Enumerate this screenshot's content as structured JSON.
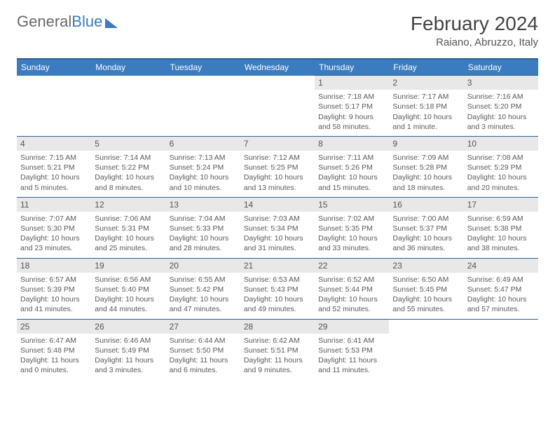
{
  "logo": {
    "text1": "General",
    "text2": "Blue"
  },
  "header": {
    "month": "February 2024",
    "location": "Raiano, Abruzzo, Italy"
  },
  "colors": {
    "header_bg": "#3b7bbf",
    "header_border": "#2d5f94",
    "daynum_bg": "#e8e8e8",
    "text": "#5a5a5a",
    "logo_gray": "#6a6a6a",
    "logo_blue": "#3b7bbf"
  },
  "typography": {
    "month_fontsize": 28,
    "location_fontsize": 15,
    "dayheader_fontsize": 12,
    "cell_fontsize": 10.5
  },
  "calendar": {
    "day_headers": [
      "Sunday",
      "Monday",
      "Tuesday",
      "Wednesday",
      "Thursday",
      "Friday",
      "Saturday"
    ],
    "leading_empty": 4,
    "days": [
      {
        "n": 1,
        "sunrise": "7:18 AM",
        "sunset": "5:17 PM",
        "daylight": "9 hours and 58 minutes."
      },
      {
        "n": 2,
        "sunrise": "7:17 AM",
        "sunset": "5:18 PM",
        "daylight": "10 hours and 1 minute."
      },
      {
        "n": 3,
        "sunrise": "7:16 AM",
        "sunset": "5:20 PM",
        "daylight": "10 hours and 3 minutes."
      },
      {
        "n": 4,
        "sunrise": "7:15 AM",
        "sunset": "5:21 PM",
        "daylight": "10 hours and 5 minutes."
      },
      {
        "n": 5,
        "sunrise": "7:14 AM",
        "sunset": "5:22 PM",
        "daylight": "10 hours and 8 minutes."
      },
      {
        "n": 6,
        "sunrise": "7:13 AM",
        "sunset": "5:24 PM",
        "daylight": "10 hours and 10 minutes."
      },
      {
        "n": 7,
        "sunrise": "7:12 AM",
        "sunset": "5:25 PM",
        "daylight": "10 hours and 13 minutes."
      },
      {
        "n": 8,
        "sunrise": "7:11 AM",
        "sunset": "5:26 PM",
        "daylight": "10 hours and 15 minutes."
      },
      {
        "n": 9,
        "sunrise": "7:09 AM",
        "sunset": "5:28 PM",
        "daylight": "10 hours and 18 minutes."
      },
      {
        "n": 10,
        "sunrise": "7:08 AM",
        "sunset": "5:29 PM",
        "daylight": "10 hours and 20 minutes."
      },
      {
        "n": 11,
        "sunrise": "7:07 AM",
        "sunset": "5:30 PM",
        "daylight": "10 hours and 23 minutes."
      },
      {
        "n": 12,
        "sunrise": "7:06 AM",
        "sunset": "5:31 PM",
        "daylight": "10 hours and 25 minutes."
      },
      {
        "n": 13,
        "sunrise": "7:04 AM",
        "sunset": "5:33 PM",
        "daylight": "10 hours and 28 minutes."
      },
      {
        "n": 14,
        "sunrise": "7:03 AM",
        "sunset": "5:34 PM",
        "daylight": "10 hours and 31 minutes."
      },
      {
        "n": 15,
        "sunrise": "7:02 AM",
        "sunset": "5:35 PM",
        "daylight": "10 hours and 33 minutes."
      },
      {
        "n": 16,
        "sunrise": "7:00 AM",
        "sunset": "5:37 PM",
        "daylight": "10 hours and 36 minutes."
      },
      {
        "n": 17,
        "sunrise": "6:59 AM",
        "sunset": "5:38 PM",
        "daylight": "10 hours and 38 minutes."
      },
      {
        "n": 18,
        "sunrise": "6:57 AM",
        "sunset": "5:39 PM",
        "daylight": "10 hours and 41 minutes."
      },
      {
        "n": 19,
        "sunrise": "6:56 AM",
        "sunset": "5:40 PM",
        "daylight": "10 hours and 44 minutes."
      },
      {
        "n": 20,
        "sunrise": "6:55 AM",
        "sunset": "5:42 PM",
        "daylight": "10 hours and 47 minutes."
      },
      {
        "n": 21,
        "sunrise": "6:53 AM",
        "sunset": "5:43 PM",
        "daylight": "10 hours and 49 minutes."
      },
      {
        "n": 22,
        "sunrise": "6:52 AM",
        "sunset": "5:44 PM",
        "daylight": "10 hours and 52 minutes."
      },
      {
        "n": 23,
        "sunrise": "6:50 AM",
        "sunset": "5:45 PM",
        "daylight": "10 hours and 55 minutes."
      },
      {
        "n": 24,
        "sunrise": "6:49 AM",
        "sunset": "5:47 PM",
        "daylight": "10 hours and 57 minutes."
      },
      {
        "n": 25,
        "sunrise": "6:47 AM",
        "sunset": "5:48 PM",
        "daylight": "11 hours and 0 minutes."
      },
      {
        "n": 26,
        "sunrise": "6:46 AM",
        "sunset": "5:49 PM",
        "daylight": "11 hours and 3 minutes."
      },
      {
        "n": 27,
        "sunrise": "6:44 AM",
        "sunset": "5:50 PM",
        "daylight": "11 hours and 6 minutes."
      },
      {
        "n": 28,
        "sunrise": "6:42 AM",
        "sunset": "5:51 PM",
        "daylight": "11 hours and 9 minutes."
      },
      {
        "n": 29,
        "sunrise": "6:41 AM",
        "sunset": "5:53 PM",
        "daylight": "11 hours and 11 minutes."
      }
    ],
    "labels": {
      "sunrise": "Sunrise:",
      "sunset": "Sunset:",
      "daylight": "Daylight:"
    }
  }
}
